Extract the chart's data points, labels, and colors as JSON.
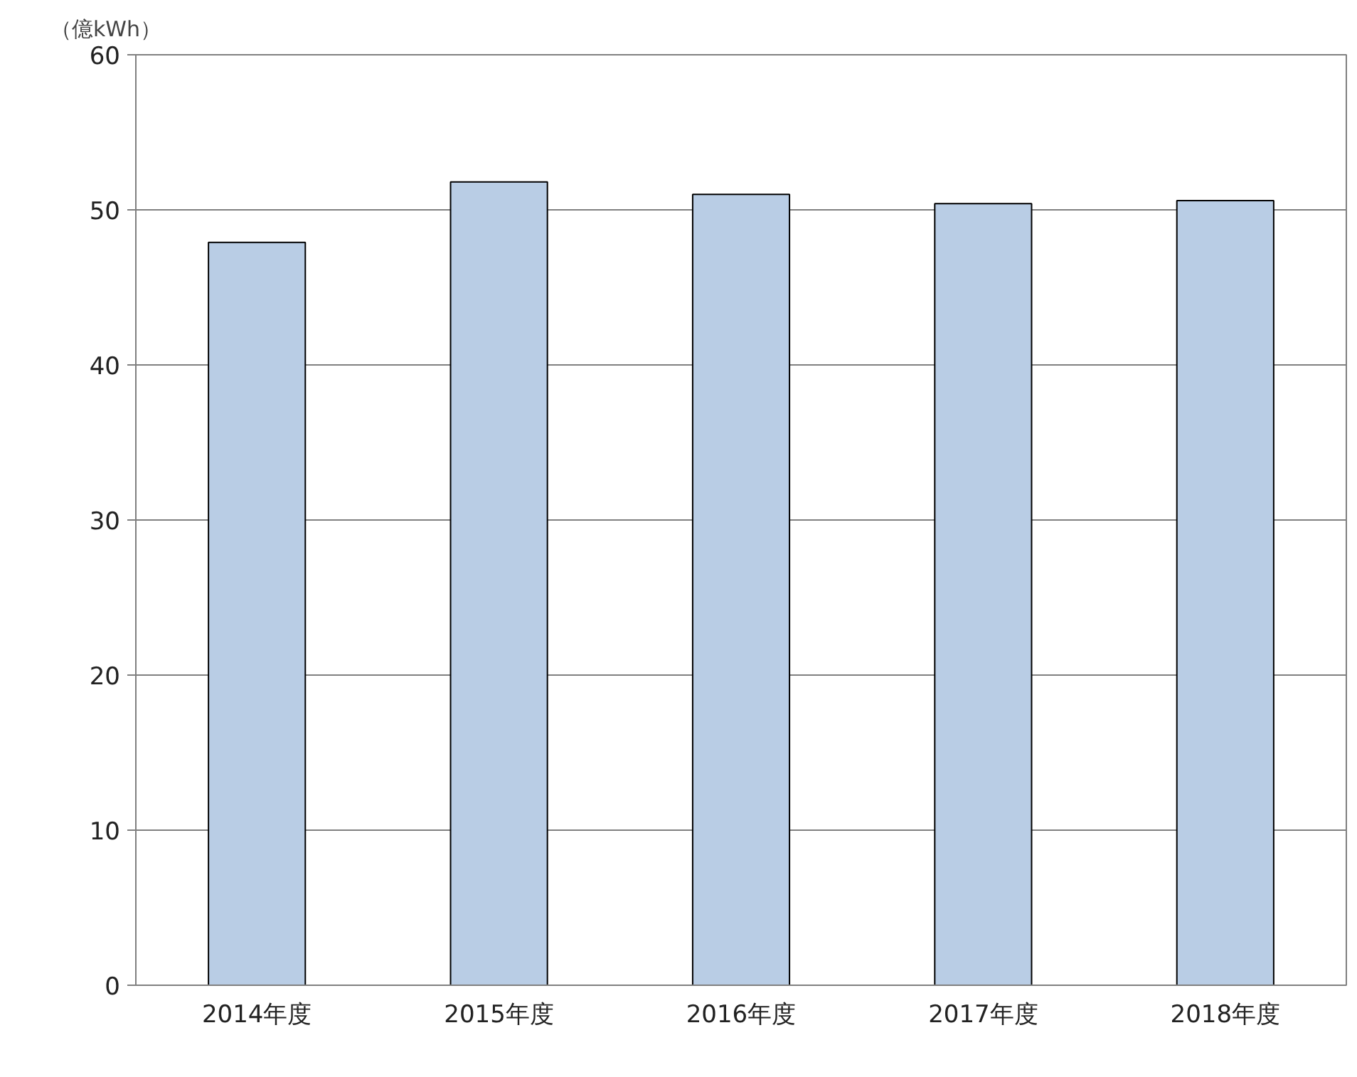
{
  "chart_data": {
    "type": "bar",
    "ylabel": "（億kWh）",
    "categories": [
      "2014年度",
      "2015年度",
      "2016年度",
      "2017年度",
      "2018年度"
    ],
    "values": [
      47.9,
      51.8,
      51.0,
      50.4,
      50.6
    ],
    "color": "#b9cde5",
    "ylim": [
      0,
      60
    ],
    "yticks": [
      0,
      10,
      20,
      30,
      40,
      50,
      60
    ],
    "grid": "y"
  }
}
